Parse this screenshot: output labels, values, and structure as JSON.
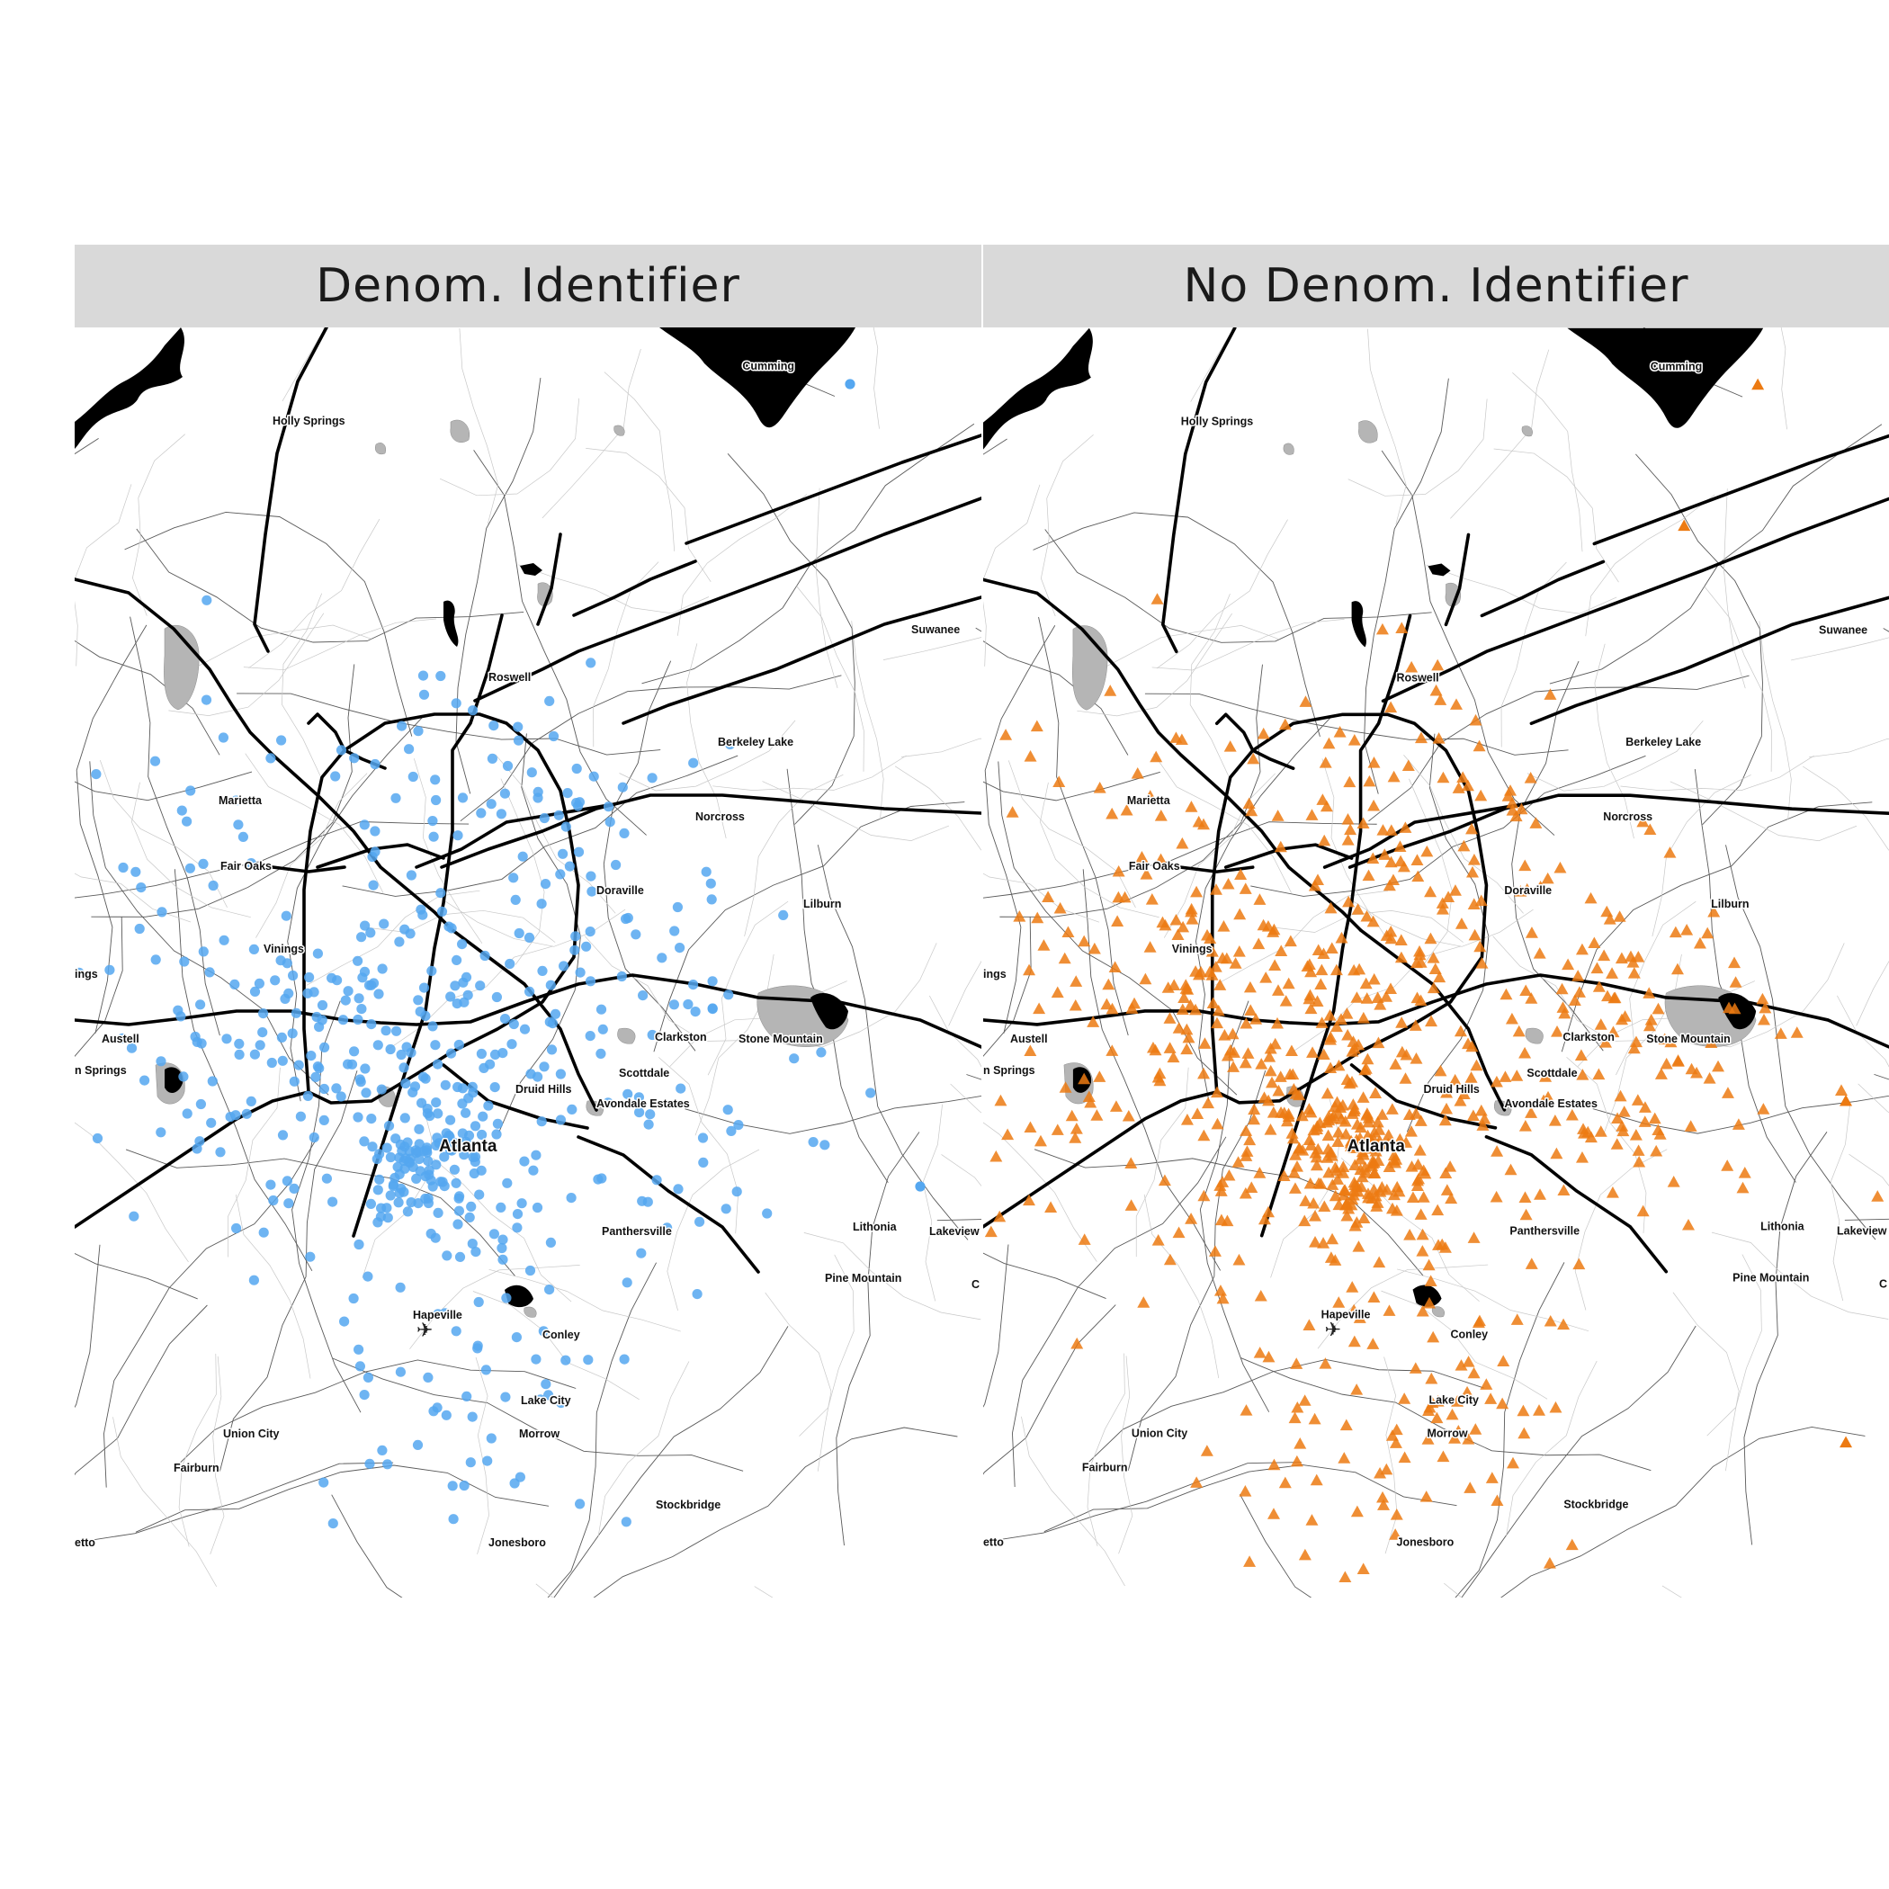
{
  "figure": {
    "panels": [
      {
        "title": "Denom. Identifier",
        "marker": "circle",
        "color": "#55a7f0"
      },
      {
        "title": "No Denom. Identifier",
        "marker": "triangle",
        "color": "#ec7a12"
      }
    ]
  },
  "map": {
    "place_labels": [
      "Cumming",
      "Holly Springs",
      "Roswell",
      "Suwanee",
      "Berkeley Lake",
      "Marietta",
      "Norcross",
      "Fair Oaks",
      "Doraville",
      "Lilburn",
      "Vinings",
      "Austell",
      "Clarkston",
      "Stone Mountain",
      "Scottdale",
      "Druid Hills",
      "Avondale Estates",
      "Atlanta",
      "Lithonia",
      "Lakeview",
      "Panthersville",
      "Pine Mountain",
      "Hapeville",
      "Conley",
      "Lake City",
      "Union City",
      "Fairburn",
      "Morrow",
      "Stockbridge",
      "Jonesboro",
      "ings",
      "n Springs",
      "etto",
      "C",
      "Lake"
    ]
  }
}
